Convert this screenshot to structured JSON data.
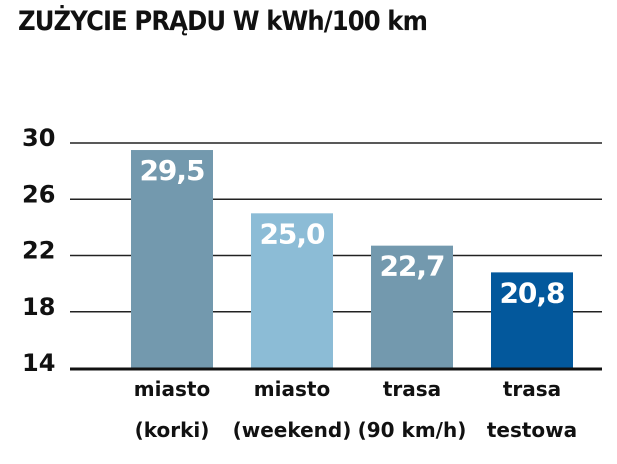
{
  "chart_data": {
    "type": "bar",
    "title": "ZUŻYCIE PRĄDU W kWh/100 km",
    "categories": [
      [
        "miasto",
        "(korki)"
      ],
      [
        "miasto",
        "(weekend)"
      ],
      [
        "trasa",
        "(90 km/h)"
      ],
      [
        "trasa",
        "testowa"
      ]
    ],
    "values": [
      29.5,
      25.0,
      22.7,
      20.8
    ],
    "value_labels": [
      "29,5",
      "25,0",
      "22,7",
      "20,8"
    ],
    "ylim": [
      14,
      30
    ],
    "yticks": [
      30,
      26,
      22,
      18,
      14
    ],
    "grid": true,
    "bar_colors": [
      "#7399ae",
      "#8cbcd6",
      "#7399ae",
      "#03589c"
    ]
  }
}
